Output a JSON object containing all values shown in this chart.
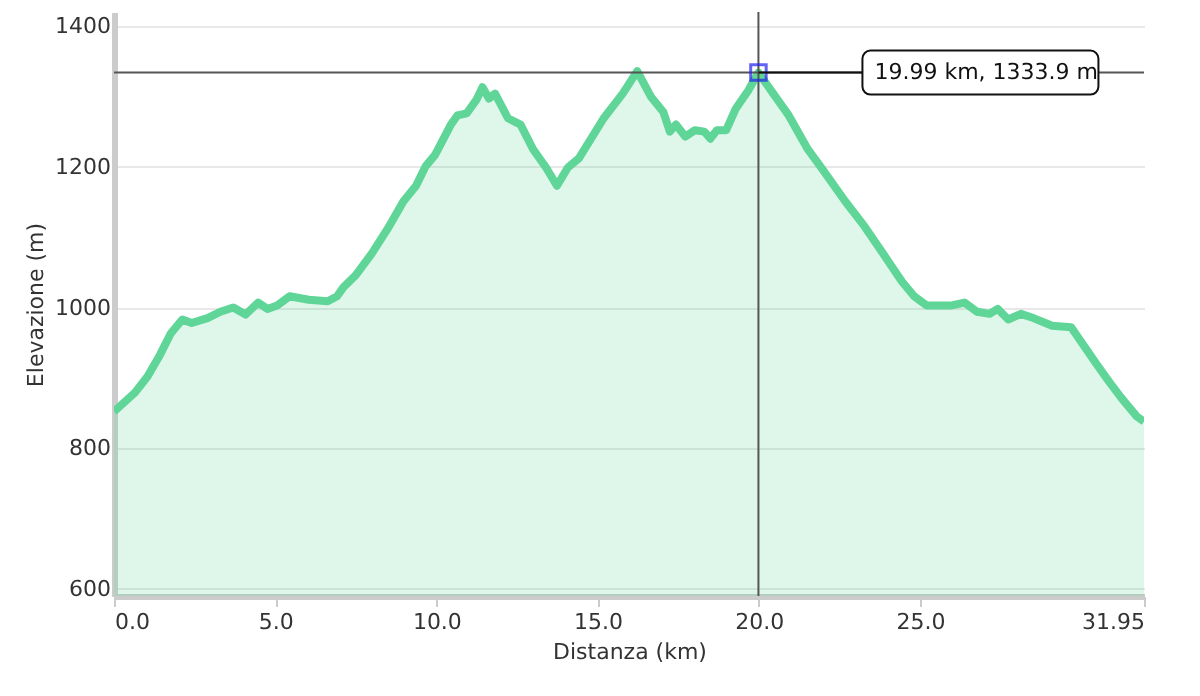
{
  "chart_data": {
    "type": "area",
    "xlabel": "Distanza (km)",
    "ylabel": "Elevazione (m)",
    "series": [
      {
        "color": "#5fd597",
        "x": [
          0,
          0.65,
          1.04,
          1.43,
          1.76,
          2.12,
          2.41,
          2.9,
          3.3,
          3.7,
          4.08,
          4.47,
          4.76,
          5.06,
          5.45,
          6.04,
          6.63,
          6.92,
          7.12,
          7.5,
          8.0,
          8.49,
          8.98,
          9.37,
          9.67,
          9.96,
          10.45,
          10.65,
          10.94,
          11.24,
          11.43,
          11.63,
          11.82,
          12.22,
          12.61,
          13.0,
          13.4,
          13.74,
          14.08,
          14.42,
          15.19,
          15.78,
          16.23,
          16.65,
          17.04,
          17.24,
          17.43,
          17.72,
          18.02,
          18.31,
          18.5,
          18.7,
          18.99,
          19.28,
          19.67,
          19.99,
          20.45,
          20.93,
          21.52,
          22.0,
          22.68,
          23.27,
          23.85,
          24.44,
          24.82,
          25.21,
          25.99,
          26.38,
          26.77,
          27.16,
          27.41,
          27.74,
          28.13,
          28.52,
          29.1,
          29.69,
          30.08,
          30.47,
          30.86,
          31.24,
          31.73,
          31.95
        ],
        "values": [
          852,
          879,
          902,
          933,
          963,
          983,
          978,
          985,
          994,
          1000,
          990,
          1007,
          998,
          1003,
          1016,
          1011,
          1009,
          1016,
          1029,
          1046,
          1077,
          1112,
          1151,
          1173,
          1201,
          1217,
          1260,
          1273,
          1276,
          1295,
          1313,
          1297,
          1304,
          1269,
          1260,
          1225,
          1199,
          1173,
          1199,
          1212,
          1269,
          1304,
          1336,
          1300,
          1278,
          1250,
          1260,
          1243,
          1252,
          1250,
          1240,
          1252,
          1252,
          1282,
          1308,
          1333.9,
          1304,
          1273,
          1225,
          1195,
          1151,
          1116,
          1077,
          1037,
          1016,
          1003,
          1003,
          1007,
          994,
          991,
          998,
          983,
          991,
          985,
          974,
          972,
          946,
          920,
          895,
          872,
          845,
          838
        ]
      }
    ],
    "xlim": [
      0,
      31.95
    ],
    "xticks": [
      {
        "value": 0,
        "label": "0.0"
      },
      {
        "value": 5,
        "label": "5.0"
      },
      {
        "value": 10,
        "label": "10.0"
      },
      {
        "value": 15,
        "label": "15.0"
      },
      {
        "value": 20,
        "label": "20.0"
      },
      {
        "value": 25,
        "label": "25.0"
      },
      31.95
    ],
    "ylim": [
      590,
      1420
    ],
    "yticks": [
      600,
      800,
      1000,
      1200,
      1400
    ],
    "grid": "y",
    "ref_lines": [
      {
        "axis": "x",
        "value": 19.99,
        "color": "#555555"
      },
      {
        "axis": "y",
        "value": 1333.9,
        "color": "#555555"
      }
    ],
    "annotations": [
      {
        "text": "19.99 km, 1333.9 m",
        "x": 19.99,
        "y": 1333.9
      }
    ]
  }
}
